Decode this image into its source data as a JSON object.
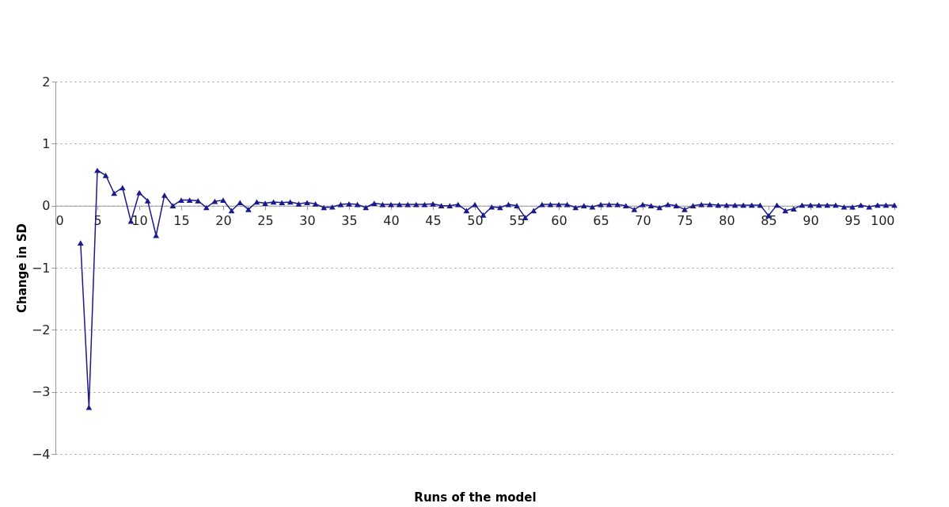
{
  "chart_data": {
    "type": "line",
    "xlabel": "Runs of the model",
    "ylabel": "Change in SD",
    "x": [
      3,
      4,
      5,
      6,
      7,
      8,
      9,
      10,
      11,
      12,
      13,
      14,
      15,
      16,
      17,
      18,
      19,
      20,
      21,
      22,
      23,
      24,
      25,
      26,
      27,
      28,
      29,
      30,
      31,
      32,
      33,
      34,
      35,
      36,
      37,
      38,
      39,
      40,
      41,
      42,
      43,
      44,
      45,
      46,
      47,
      48,
      49,
      50,
      51,
      52,
      53,
      54,
      55,
      56,
      57,
      58,
      59,
      60,
      61,
      62,
      63,
      64,
      65,
      66,
      67,
      68,
      69,
      70,
      71,
      72,
      73,
      74,
      75,
      76,
      77,
      78,
      79,
      80,
      81,
      82,
      83,
      84,
      85,
      86,
      87,
      88,
      89,
      90,
      91,
      92,
      93,
      94,
      95,
      96,
      97,
      98,
      99,
      100
    ],
    "series": [
      {
        "color": "#1a1a8c",
        "values": [
          -0.6,
          -3.25,
          0.57,
          0.49,
          0.2,
          0.29,
          -0.25,
          0.21,
          0.08,
          -0.48,
          0.17,
          0.0,
          0.09,
          0.09,
          0.08,
          -0.03,
          0.07,
          0.09,
          -0.08,
          0.05,
          -0.06,
          0.06,
          0.04,
          0.06,
          0.05,
          0.06,
          0.03,
          0.05,
          0.03,
          -0.03,
          -0.02,
          0.02,
          0.03,
          0.02,
          -0.03,
          0.04,
          0.02,
          0.02,
          0.02,
          0.02,
          0.02,
          0.02,
          0.03,
          0.0,
          0.0,
          0.02,
          -0.08,
          0.02,
          -0.15,
          -0.02,
          -0.03,
          0.02,
          0.0,
          -0.19,
          -0.08,
          0.02,
          0.02,
          0.02,
          0.02,
          -0.03,
          0.0,
          -0.02,
          0.02,
          0.02,
          0.02,
          0.0,
          -0.06,
          0.02,
          0.0,
          -0.03,
          0.02,
          0.0,
          -0.06,
          0.0,
          0.02,
          0.02,
          0.01,
          0.01,
          0.01,
          0.01,
          0.01,
          0.01,
          -0.16,
          0.01,
          -0.08,
          -0.05,
          0.01,
          0.01,
          0.01,
          0.01,
          0.01,
          -0.02,
          -0.02,
          0.01,
          -0.02,
          0.01,
          0.01,
          0.01
        ]
      }
    ],
    "xlim": [
      0,
      100
    ],
    "xticks": [
      0,
      5,
      10,
      15,
      20,
      25,
      30,
      35,
      40,
      45,
      50,
      55,
      60,
      65,
      70,
      75,
      80,
      85,
      90,
      95,
      100
    ],
    "ylim": [
      -4,
      2
    ],
    "yticks": [
      -4,
      -3,
      -2,
      -1,
      0,
      1,
      2
    ],
    "grid": "y",
    "marker": "triangle",
    "line_style": "solid"
  }
}
